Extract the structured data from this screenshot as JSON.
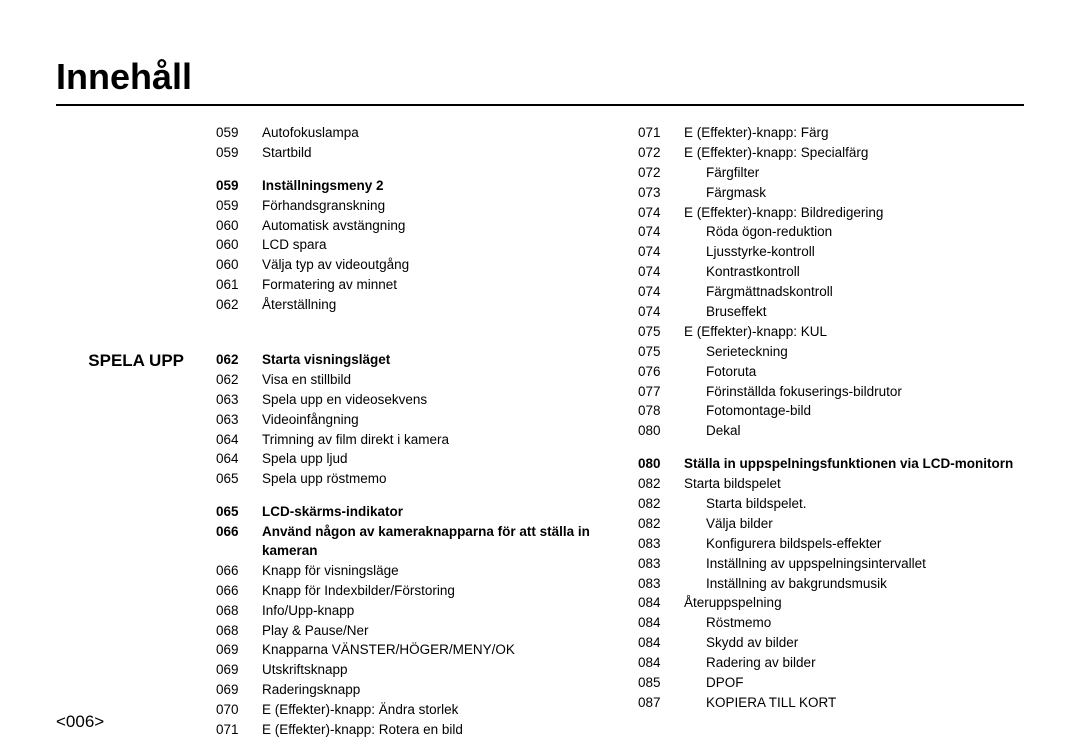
{
  "title": "Innehåll",
  "pageNumber": "<006>",
  "sectionLabel": "SPELA UPP",
  "sectionLabelAlignIndex": 4,
  "styling": {
    "background_color": "#ffffff",
    "text_color": "#000000",
    "font_family": "Arial",
    "title_fontsize": 36,
    "section_label_fontsize": 17,
    "body_fontsize": 13.5,
    "page_number_fontsize": 17,
    "title_underline_width": 2
  },
  "col1": [
    {
      "page": "059",
      "text": "Autofokuslampa",
      "bold": false,
      "indent": false
    },
    {
      "page": "059",
      "text": "Startbild",
      "bold": false,
      "indent": false
    },
    {
      "page": "059",
      "text": "Inställningsmeny 2",
      "bold": true,
      "indent": false,
      "gap": true
    },
    {
      "page": "059",
      "text": "Förhandsgranskning",
      "bold": false,
      "indent": false
    },
    {
      "page": "060",
      "text": "Automatisk avstängning",
      "bold": false,
      "indent": false
    },
    {
      "page": "060",
      "text": "LCD spara",
      "bold": false,
      "indent": false
    },
    {
      "page": "060",
      "text": "Välja typ av videoutgång",
      "bold": false,
      "indent": false
    },
    {
      "page": "061",
      "text": "Formatering av minnet",
      "bold": false,
      "indent": false
    },
    {
      "page": "062",
      "text": "Återställning",
      "bold": false,
      "indent": false
    },
    {
      "page": "062",
      "text": "Starta visningsläget",
      "bold": true,
      "indent": false,
      "gap": true,
      "big_gap": true
    },
    {
      "page": "062",
      "text": "Visa en stillbild",
      "bold": false,
      "indent": false
    },
    {
      "page": "063",
      "text": "Spela upp en videosekvens",
      "bold": false,
      "indent": false
    },
    {
      "page": "063",
      "text": "Videoinfångning",
      "bold": false,
      "indent": false
    },
    {
      "page": "064",
      "text": "Trimning av film direkt i kamera",
      "bold": false,
      "indent": false
    },
    {
      "page": "064",
      "text": "Spela upp ljud",
      "bold": false,
      "indent": false
    },
    {
      "page": "065",
      "text": "Spela upp röstmemo",
      "bold": false,
      "indent": false
    },
    {
      "page": "065",
      "text": "LCD-skärms-indikator",
      "bold": true,
      "indent": false,
      "gap": true
    },
    {
      "page": "066",
      "text": "Använd någon av kameraknapparna för att ställa in kameran",
      "bold": true,
      "indent": false
    },
    {
      "page": "066",
      "text": "Knapp för visningsläge",
      "bold": false,
      "indent": false
    },
    {
      "page": "066",
      "text": "Knapp för Indexbilder/Förstoring",
      "bold": false,
      "indent": false
    },
    {
      "page": "068",
      "text": "Info/Upp-knapp",
      "bold": false,
      "indent": false
    },
    {
      "page": "068",
      "text": "Play & Pause/Ner",
      "bold": false,
      "indent": false
    },
    {
      "page": "069",
      "text": "Knapparna VÄNSTER/HÖGER/MENY/OK",
      "bold": false,
      "indent": false
    },
    {
      "page": "069",
      "text": "Utskriftsknapp",
      "bold": false,
      "indent": false
    },
    {
      "page": "069",
      "text": "Raderingsknapp",
      "bold": false,
      "indent": false
    },
    {
      "page": "070",
      "text": "E (Effekter)-knapp: Ändra storlek",
      "bold": false,
      "indent": false
    },
    {
      "page": "071",
      "text": "E (Effekter)-knapp: Rotera en bild",
      "bold": false,
      "indent": false
    }
  ],
  "col2": [
    {
      "page": "071",
      "text": "E (Effekter)-knapp: Färg",
      "bold": false,
      "indent": false
    },
    {
      "page": "072",
      "text": "E (Effekter)-knapp: Specialfärg",
      "bold": false,
      "indent": false
    },
    {
      "page": "072",
      "text": "Färgfilter",
      "bold": false,
      "indent": true
    },
    {
      "page": "073",
      "text": "Färgmask",
      "bold": false,
      "indent": true
    },
    {
      "page": "074",
      "text": "E (Effekter)-knapp: Bildredigering",
      "bold": false,
      "indent": false
    },
    {
      "page": "074",
      "text": "Röda ögon-reduktion",
      "bold": false,
      "indent": true
    },
    {
      "page": "074",
      "text": "Ljusstyrke-kontroll",
      "bold": false,
      "indent": true
    },
    {
      "page": "074",
      "text": "Kontrastkontroll",
      "bold": false,
      "indent": true
    },
    {
      "page": "074",
      "text": "Färgmättnadskontroll",
      "bold": false,
      "indent": true
    },
    {
      "page": "074",
      "text": "Bruseffekt",
      "bold": false,
      "indent": true
    },
    {
      "page": "075",
      "text": "E (Effekter)-knapp: KUL",
      "bold": false,
      "indent": false
    },
    {
      "page": "075",
      "text": "Serieteckning",
      "bold": false,
      "indent": true
    },
    {
      "page": "076",
      "text": "Fotoruta",
      "bold": false,
      "indent": true
    },
    {
      "page": "077",
      "text": "Förinställda fokuserings-bildrutor",
      "bold": false,
      "indent": true
    },
    {
      "page": "078",
      "text": "Fotomontage-bild",
      "bold": false,
      "indent": true
    },
    {
      "page": "080",
      "text": "Dekal",
      "bold": false,
      "indent": true
    },
    {
      "page": "080",
      "text": "Ställa in uppspelningsfunktionen via LCD-monitorn",
      "bold": true,
      "indent": false,
      "gap": true
    },
    {
      "page": "082",
      "text": "Starta bildspelet",
      "bold": false,
      "indent": false
    },
    {
      "page": "082",
      "text": "Starta bildspelet.",
      "bold": false,
      "indent": true
    },
    {
      "page": "082",
      "text": "Välja bilder",
      "bold": false,
      "indent": true
    },
    {
      "page": "083",
      "text": "Konfigurera bildspels-effekter",
      "bold": false,
      "indent": true
    },
    {
      "page": "083",
      "text": "Inställning av uppspelningsintervallet",
      "bold": false,
      "indent": true
    },
    {
      "page": "083",
      "text": "Inställning av bakgrundsmusik",
      "bold": false,
      "indent": true
    },
    {
      "page": "084",
      "text": "Återuppspelning",
      "bold": false,
      "indent": false
    },
    {
      "page": "084",
      "text": "Röstmemo",
      "bold": false,
      "indent": true
    },
    {
      "page": "084",
      "text": "Skydd av bilder",
      "bold": false,
      "indent": true
    },
    {
      "page": "084",
      "text": "Radering av bilder",
      "bold": false,
      "indent": true
    },
    {
      "page": "085",
      "text": "DPOF",
      "bold": false,
      "indent": true
    },
    {
      "page": "087",
      "text": "KOPIERA TILL KORT",
      "bold": false,
      "indent": true
    }
  ]
}
